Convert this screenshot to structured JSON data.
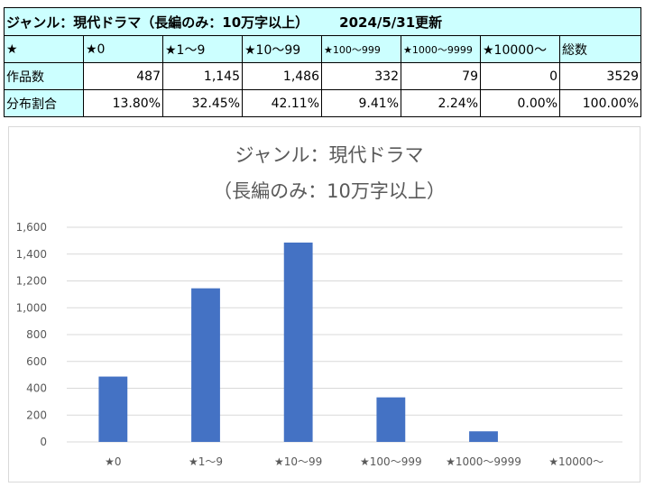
{
  "table": {
    "title": "ジャンル：現代ドラマ（長編のみ：10万字以上）",
    "updated": "2024/5/31更新",
    "header_label": "★",
    "headers": [
      "★0",
      "★1〜9",
      "★10〜99",
      "★100〜999",
      "★1000〜9999",
      "★10000〜",
      "総数"
    ],
    "rows": [
      {
        "label": "作品数",
        "values": [
          "487",
          "1,145",
          "1,486",
          "332",
          "79",
          "0",
          "3529"
        ]
      },
      {
        "label": "分布割合",
        "values": [
          "13.80%",
          "32.45%",
          "42.11%",
          "9.41%",
          "2.24%",
          "0.00%",
          "100.00%"
        ]
      }
    ]
  },
  "chart_data": {
    "type": "bar",
    "title": "ジャンル：現代ドラマ",
    "subtitle": "（長編のみ：10万字以上）",
    "categories": [
      "★0",
      "★1〜9",
      "★10〜99",
      "★100〜999",
      "★1000〜9999",
      "★10000〜"
    ],
    "values": [
      487,
      1145,
      1486,
      332,
      79,
      0
    ],
    "ylim": [
      0,
      1600
    ],
    "yticks": [
      "0",
      "200",
      "400",
      "600",
      "800",
      "1,000",
      "1,200",
      "1,400",
      "1,600"
    ],
    "grid": true,
    "bar_color": "#4472c4",
    "xlabel": "",
    "ylabel": ""
  }
}
